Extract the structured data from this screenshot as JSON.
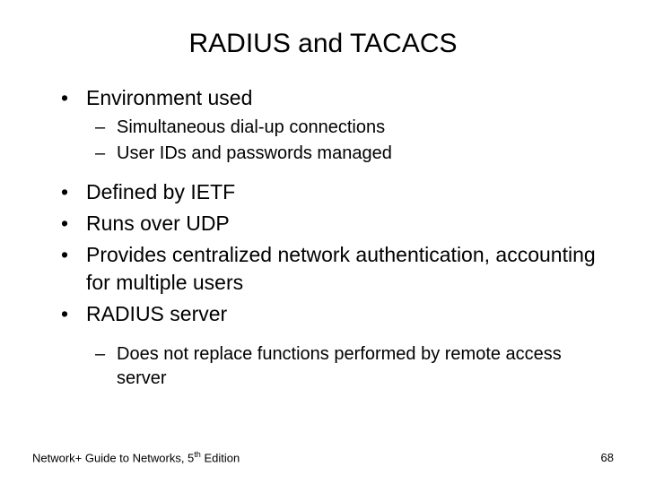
{
  "title": "RADIUS and TACACS",
  "bullets": {
    "b1": "Environment used",
    "b1a": "Simultaneous dial-up connections",
    "b1b": "User IDs and passwords managed",
    "b2": "Defined by IETF",
    "b3": "Runs over UDP",
    "b4": "Provides centralized network authentication, accounting for multiple users",
    "b5": "RADIUS server",
    "b5a": "Does not replace functions performed by remote access server"
  },
  "footer": {
    "left_prefix": "Network+ Guide to Networks, 5",
    "left_sup": "th",
    "left_suffix": " Edition",
    "page": "68"
  },
  "marks": {
    "l1": "•",
    "l2": "–"
  },
  "style": {
    "background": "#ffffff",
    "text_color": "#000000",
    "title_fontsize": 30,
    "l1_fontsize": 23,
    "l2_fontsize": 20,
    "footer_fontsize": 13
  }
}
